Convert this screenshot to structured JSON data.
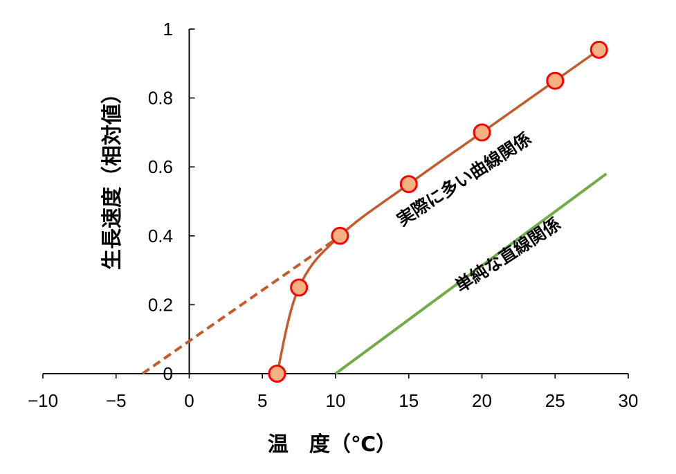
{
  "chart_data": {
    "type": "line",
    "xlabel": "温　度（℃）",
    "ylabel": "生長速度（相対値）",
    "xlim": [
      -10,
      30
    ],
    "ylim": [
      0,
      1
    ],
    "x_ticks": [
      -10,
      -5,
      0,
      5,
      10,
      15,
      20,
      25,
      30
    ],
    "y_ticks": [
      0,
      0.2,
      0.4,
      0.6,
      0.8,
      1
    ],
    "x_tick_labels": [
      "−10",
      "−5",
      "0",
      "5",
      "10",
      "15",
      "20",
      "25",
      "30"
    ],
    "y_tick_labels": [
      "0",
      "0.2",
      "0.4",
      "0.6",
      "0.8",
      "1"
    ],
    "series": [
      {
        "name": "実際に多い曲線関係",
        "color": "#c55a2b",
        "marker_fill": "#f4b183",
        "marker_stroke": "#ff0000",
        "x": [
          6,
          7.5,
          10.3,
          15,
          20,
          25,
          28
        ],
        "y": [
          0,
          0.25,
          0.4,
          0.55,
          0.7,
          0.85,
          0.94
        ]
      },
      {
        "name": "単純な直線関係",
        "color": "#70ad47",
        "x": [
          10,
          28.5
        ],
        "y": [
          0,
          0.58
        ]
      }
    ],
    "extrapolation": {
      "color": "#c55a2b",
      "style": "dashed",
      "x": [
        -3.2,
        10
      ],
      "y": [
        0,
        0.39
      ]
    },
    "annotations": [
      {
        "text": "実際に多い曲線関係",
        "x": 19,
        "y": 0.55,
        "angle": -33
      },
      {
        "text": "単純な直線関係",
        "x": 22,
        "y": 0.33,
        "angle": -33
      }
    ]
  }
}
